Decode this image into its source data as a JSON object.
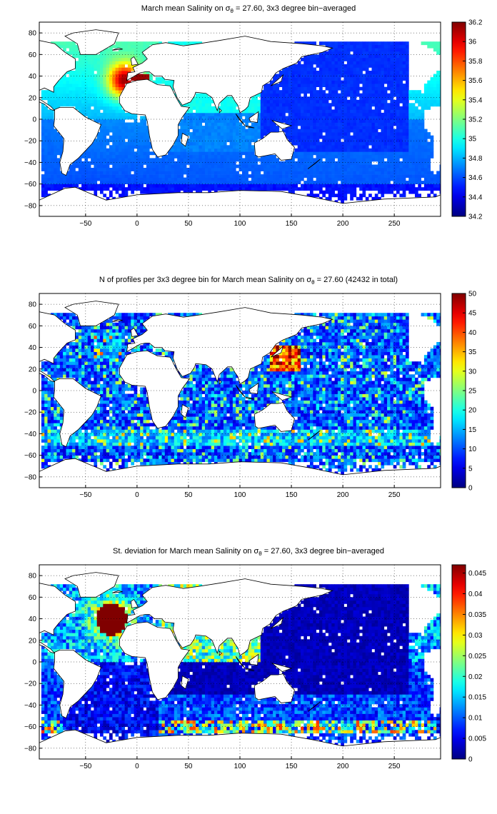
{
  "figure": {
    "panels": [
      {
        "id": "salinity",
        "title_before": "March mean Salinity on σ",
        "title_sub": "θ",
        "title_after": " = 27.60, 3x3 degree bin−averaged",
        "x_ticks": [
          "−50",
          "0",
          "50",
          "100",
          "150",
          "200",
          "250"
        ],
        "y_ticks": [
          "80",
          "60",
          "40",
          "20",
          "0",
          "−20",
          "−40",
          "−60",
          "−80"
        ],
        "colorbar_ticks": [
          "36.2",
          "36",
          "35.8",
          "35.6",
          "35.4",
          "35.2",
          "35",
          "34.8",
          "34.6",
          "34.4",
          "34.2"
        ],
        "colorbar_range": [
          34.2,
          36.2
        ]
      },
      {
        "id": "profile-count",
        "title_before": "N of profiles per 3x3 degree bin for March mean Salinity on σ",
        "title_sub": "θ",
        "title_after": " = 27.60 (42432 in total)",
        "x_ticks": [
          "−50",
          "0",
          "50",
          "100",
          "150",
          "200",
          "250"
        ],
        "y_ticks": [
          "80",
          "60",
          "40",
          "20",
          "0",
          "−20",
          "−40",
          "−60",
          "−80"
        ],
        "colorbar_ticks": [
          "50",
          "45",
          "40",
          "35",
          "30",
          "25",
          "20",
          "15",
          "10",
          "5",
          "0"
        ],
        "colorbar_range": [
          0,
          50
        ]
      },
      {
        "id": "std-dev",
        "title_before": "St. deviation for March mean Salinity on σ",
        "title_sub": "θ",
        "title_after": " = 27.60, 3x3 degree bin−averaged",
        "x_ticks": [
          "−50",
          "0",
          "50",
          "100",
          "150",
          "200",
          "250"
        ],
        "y_ticks": [
          "80",
          "60",
          "40",
          "20",
          "0",
          "−20",
          "−40",
          "−60",
          "−80"
        ],
        "colorbar_ticks": [
          "0.045",
          "0.04",
          "0.035",
          "0.03",
          "0.025",
          "0.02",
          "0.015",
          "0.01",
          "0.005",
          "0"
        ],
        "colorbar_range": [
          0,
          0.047
        ]
      }
    ],
    "x_range": [
      -95,
      295
    ],
    "y_range": [
      -90,
      90
    ],
    "colormap": "jet",
    "land_color": "#ffffff",
    "grid": "dotted"
  }
}
